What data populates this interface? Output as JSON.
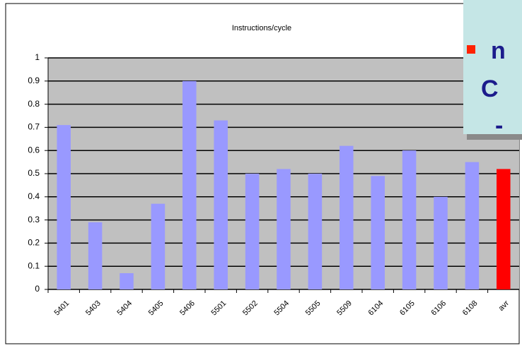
{
  "chart_data": {
    "type": "bar",
    "title": "Instructions/cycle",
    "categories": [
      "5401",
      "5403",
      "5404",
      "5405",
      "5406",
      "5501",
      "5502",
      "5504",
      "5505",
      "5509",
      "6104",
      "6105",
      "6106",
      "6108",
      "avr"
    ],
    "values": [
      0.71,
      0.29,
      0.07,
      0.37,
      0.9,
      0.73,
      0.5,
      0.52,
      0.5,
      0.62,
      0.49,
      0.6,
      0.4,
      0.55,
      0.52
    ],
    "colors": [
      "#9999ff",
      "#9999ff",
      "#9999ff",
      "#9999ff",
      "#9999ff",
      "#9999ff",
      "#9999ff",
      "#9999ff",
      "#9999ff",
      "#9999ff",
      "#9999ff",
      "#9999ff",
      "#9999ff",
      "#9999ff",
      "#ff0000"
    ],
    "ylim": [
      0,
      1
    ],
    "yticks": [
      0,
      0.1,
      0.2,
      0.3,
      0.4,
      0.5,
      0.6,
      0.7,
      0.8,
      0.9,
      1
    ],
    "grid": true
  },
  "overlay": {
    "lines": [
      "n",
      "C",
      "-"
    ]
  }
}
